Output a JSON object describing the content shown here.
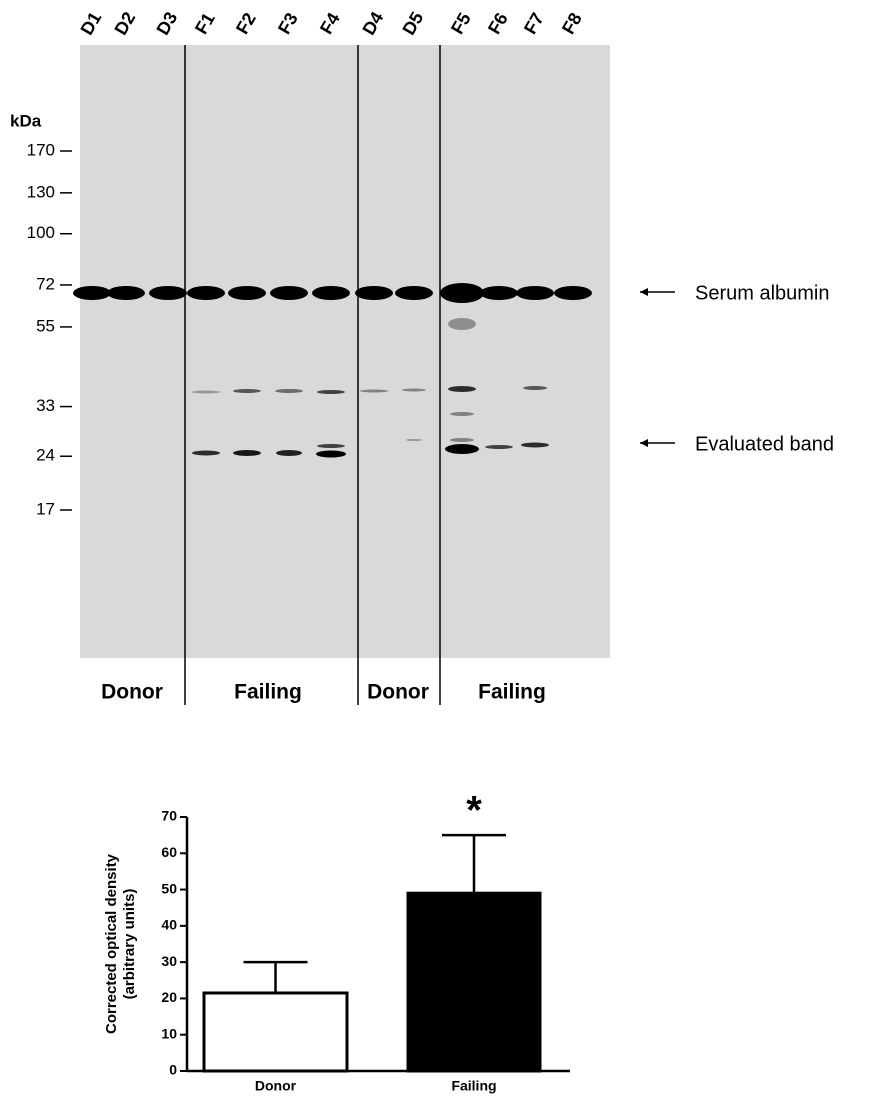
{
  "blot": {
    "lanes": [
      "D1",
      "D2",
      "D3",
      "F1",
      "F2",
      "F3",
      "F4",
      "D4",
      "D5",
      "F5",
      "F6",
      "F7",
      "F8"
    ],
    "marker_unit": "kDa",
    "markers": [
      170,
      130,
      100,
      72,
      55,
      33,
      24,
      17
    ],
    "groups": [
      "Donor",
      "Failing",
      "Donor",
      "Failing"
    ],
    "annotations": [
      "Serum albumin",
      "Evaluated band"
    ]
  },
  "chart_data": {
    "type": "bar",
    "ylabel": [
      "Corrected optical density",
      "(arbitrary units)"
    ],
    "categories": [
      "Donor",
      "Failing"
    ],
    "values": [
      21.5,
      49
    ],
    "errors": [
      8.5,
      16
    ],
    "colors": [
      "#ffffff",
      "#000000"
    ],
    "ylim": [
      0,
      70
    ],
    "yticks": [
      0,
      10,
      20,
      30,
      40,
      50,
      60,
      70
    ],
    "annotation": "*"
  }
}
